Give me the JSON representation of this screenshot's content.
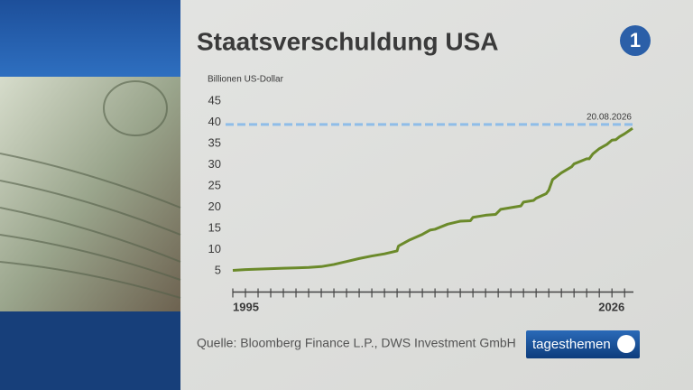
{
  "chart_data": {
    "type": "line",
    "title": "Staatsverschuldung USA",
    "y_label": "Billionen US-Dollar",
    "source": "Quelle: Bloomberg Finance L.P., DWS Investment GmbH",
    "brand": "tagesthemen",
    "channel_logo": "1",
    "annotation": "20.08.2026",
    "reference_line": {
      "value": 39.5,
      "color": "#8fbde8"
    },
    "xlim": [
      1995,
      2026.7
    ],
    "xticks": [
      1995,
      2026
    ],
    "xminorticks": [
      1996,
      1997,
      1998,
      1999,
      2000,
      2001,
      2002,
      2003,
      2004,
      2005,
      2006,
      2007,
      2008,
      2009,
      2010,
      2011,
      2012,
      2013,
      2014,
      2015,
      2016,
      2017,
      2018,
      2019,
      2020,
      2021,
      2022,
      2023,
      2024,
      2025
    ],
    "ylim": [
      0,
      45
    ],
    "yticks": [
      5,
      10,
      15,
      20,
      25,
      30,
      35,
      40,
      45
    ],
    "series": [
      {
        "name": "Staatsverschuldung",
        "color": "#6b8a2a",
        "x": [
          1995,
          1996,
          1997,
          1998,
          1999,
          2000,
          2001,
          2002,
          2003,
          2004,
          2005,
          2006,
          2007,
          2008,
          2008.1,
          2008.2,
          2009,
          2010,
          2010.6,
          2011,
          2012,
          2013,
          2013.8,
          2014,
          2015,
          2015.8,
          2016.2,
          2017,
          2017.8,
          2018,
          2018.8,
          2019,
          2019.8,
          2020,
          2020.3,
          2021,
          2021.8,
          2022,
          2023,
          2023.2,
          2023.5,
          2024,
          2024.6,
          2025,
          2025.3,
          2025.6,
          2026,
          2026.63
        ],
        "values": [
          5.1,
          5.3,
          5.4,
          5.5,
          5.6,
          5.7,
          5.8,
          6.0,
          6.5,
          7.2,
          7.9,
          8.5,
          9.0,
          9.7,
          10.8,
          11.0,
          12.3,
          13.6,
          14.6,
          14.8,
          16.0,
          16.7,
          16.8,
          17.6,
          18.1,
          18.3,
          19.5,
          19.9,
          20.3,
          21.2,
          21.6,
          22.1,
          23.2,
          24.0,
          26.5,
          28.1,
          29.5,
          30.2,
          31.4,
          31.4,
          32.6,
          33.8,
          34.8,
          35.8,
          35.9,
          36.6,
          37.3,
          38.6
        ]
      }
    ]
  }
}
